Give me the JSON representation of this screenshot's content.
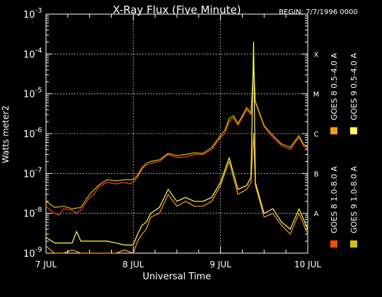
{
  "chart_data": {
    "type": "line",
    "title": "X-Ray Flux (Five Minute)",
    "begin_label": "BEGIN: 7/7/1996 0000",
    "xlabel": "Universal Time",
    "ylabel": "Watts meter2",
    "x_ticks": [
      "7 JUL",
      "8 JUL",
      "9 JUL",
      "10 JUL"
    ],
    "x_range_days": [
      7,
      10
    ],
    "y_scale": "log",
    "y_range": [
      1e-09,
      0.001
    ],
    "y_ticks": [
      {
        "mantissa": "10",
        "exp": "-9"
      },
      {
        "mantissa": "10",
        "exp": "-8"
      },
      {
        "mantissa": "10",
        "exp": "-7"
      },
      {
        "mantissa": "10",
        "exp": "-6"
      },
      {
        "mantissa": "10",
        "exp": "-5"
      },
      {
        "mantissa": "10",
        "exp": "-4"
      },
      {
        "mantissa": "10",
        "exp": "-3"
      }
    ],
    "flare_classes": [
      {
        "label": "A",
        "value": 1e-08
      },
      {
        "label": "B",
        "value": 1e-07
      },
      {
        "label": "C",
        "value": 1e-06
      },
      {
        "label": "M",
        "value": 1e-05
      },
      {
        "label": "X",
        "value": 0.0001
      }
    ],
    "grid": "dotted",
    "legend_placement": "right (vertical)",
    "series": [
      {
        "name": "GOES 8 1.0-8.0 A",
        "color": "#ff4a10",
        "x": [
          7.0,
          7.05,
          7.1,
          7.15,
          7.2,
          7.3,
          7.35,
          7.4,
          7.5,
          7.55,
          7.6,
          7.7,
          7.8,
          7.9,
          7.95,
          8.0,
          8.05,
          8.1,
          8.15,
          8.2,
          8.3,
          8.4,
          8.5,
          8.6,
          8.7,
          8.8,
          8.9,
          9.0,
          9.05,
          9.1,
          9.15,
          9.2,
          9.25,
          9.3,
          9.35,
          9.38,
          9.4,
          9.45,
          9.5,
          9.6,
          9.7,
          9.8,
          9.9,
          9.95,
          10.0
        ],
        "y": [
          1.5e-08,
          1.2e-08,
          1e-08,
          9e-09,
          1.3e-08,
          1.2e-08,
          1e-08,
          1.2e-08,
          2.5e-08,
          3e-08,
          4.5e-08,
          6e-08,
          5.5e-08,
          6e-08,
          5.5e-08,
          6e-08,
          8e-08,
          1.3e-07,
          1.6e-07,
          1.8e-07,
          2e-07,
          3e-07,
          2.5e-07,
          2.6e-07,
          3e-07,
          3e-07,
          4e-07,
          8e-07,
          1e-06,
          2e-06,
          2.5e-06,
          1.6e-06,
          2.5e-06,
          4e-06,
          3e-06,
          5e-05,
          6e-06,
          3e-06,
          1.5e-06,
          8e-07,
          5e-07,
          4e-07,
          8e-07,
          5e-07,
          4e-07
        ]
      },
      {
        "name": "GOES 8 0.5-4.0 A",
        "color": "#ff9a20",
        "x": [
          7.0,
          7.1,
          7.2,
          7.3,
          7.4,
          7.5,
          7.6,
          7.7,
          7.8,
          7.9,
          8.0,
          8.05,
          8.1,
          8.15,
          8.2,
          8.3,
          8.4,
          8.5,
          8.6,
          8.7,
          8.8,
          8.9,
          9.0,
          9.1,
          9.2,
          9.3,
          9.35,
          9.38,
          9.4,
          9.5,
          9.6,
          9.7,
          9.8,
          9.9,
          10.0
        ],
        "y": [
          1.5e-09,
          1e-09,
          1e-09,
          1.2e-09,
          1e-09,
          1e-09,
          1e-09,
          1e-09,
          1e-09,
          1.2e-09,
          1e-09,
          2e-09,
          3e-09,
          4e-09,
          8e-09,
          1e-08,
          3e-08,
          1.5e-08,
          2e-08,
          1.5e-08,
          1.5e-08,
          2e-08,
          5e-08,
          2e-07,
          3e-08,
          4e-08,
          6e-08,
          1e-06,
          5e-08,
          8e-09,
          1e-08,
          5e-09,
          3e-09,
          1e-08,
          3e-09
        ]
      },
      {
        "name": "GOES 9 1.0-8.0 A",
        "color": "#d4c010",
        "x": [
          7.0,
          7.1,
          7.2,
          7.3,
          7.4,
          7.5,
          7.6,
          7.7,
          7.8,
          7.9,
          8.0,
          8.05,
          8.1,
          8.15,
          8.2,
          8.3,
          8.4,
          8.5,
          8.6,
          8.7,
          8.8,
          8.9,
          9.0,
          9.05,
          9.1,
          9.15,
          9.2,
          9.25,
          9.3,
          9.35,
          9.38,
          9.4,
          9.45,
          9.5,
          9.6,
          9.7,
          9.8,
          9.9,
          9.95,
          10.0
        ],
        "y": [
          2e-08,
          1.4e-08,
          1.5e-08,
          1.3e-08,
          1.4e-08,
          3e-08,
          5e-08,
          7e-08,
          6.5e-08,
          7e-08,
          7e-08,
          9e-08,
          1.4e-07,
          1.8e-07,
          2e-07,
          2.2e-07,
          3.2e-07,
          2.8e-07,
          3e-07,
          3.3e-07,
          3.2e-07,
          4.5e-07,
          9e-07,
          1.2e-06,
          2.4e-06,
          2.8e-06,
          1.8e-06,
          2.8e-06,
          4.5e-06,
          3.3e-06,
          5.5e-05,
          6.5e-06,
          3.2e-06,
          1.6e-06,
          9e-07,
          5.5e-07,
          4.5e-07,
          9e-07,
          5.5e-07,
          4.5e-07
        ]
      },
      {
        "name": "GOES 9 0.5-4.0 A",
        "color": "#ffff60",
        "x": [
          7.0,
          7.1,
          7.2,
          7.3,
          7.35,
          7.4,
          7.5,
          7.6,
          7.7,
          7.8,
          7.9,
          8.0,
          8.05,
          8.1,
          8.15,
          8.2,
          8.3,
          8.4,
          8.5,
          8.6,
          8.7,
          8.8,
          8.9,
          9.0,
          9.1,
          9.2,
          9.3,
          9.35,
          9.38,
          9.4,
          9.5,
          9.6,
          9.7,
          9.8,
          9.9,
          10.0
        ],
        "y": [
          2.5e-09,
          1.8e-09,
          1.8e-09,
          1.8e-09,
          3.5e-09,
          2e-09,
          2e-09,
          2e-09,
          2e-09,
          1.8e-09,
          1.6e-09,
          1.6e-09,
          3e-09,
          5e-09,
          6e-09,
          1e-08,
          1.4e-08,
          4e-08,
          2e-08,
          2.5e-08,
          2e-08,
          2e-08,
          2.5e-08,
          6e-08,
          2.5e-07,
          4e-08,
          5e-08,
          8e-08,
          0.0002,
          6e-08,
          1e-08,
          1.3e-08,
          6e-09,
          4e-09,
          1.3e-08,
          4e-09
        ]
      }
    ]
  }
}
